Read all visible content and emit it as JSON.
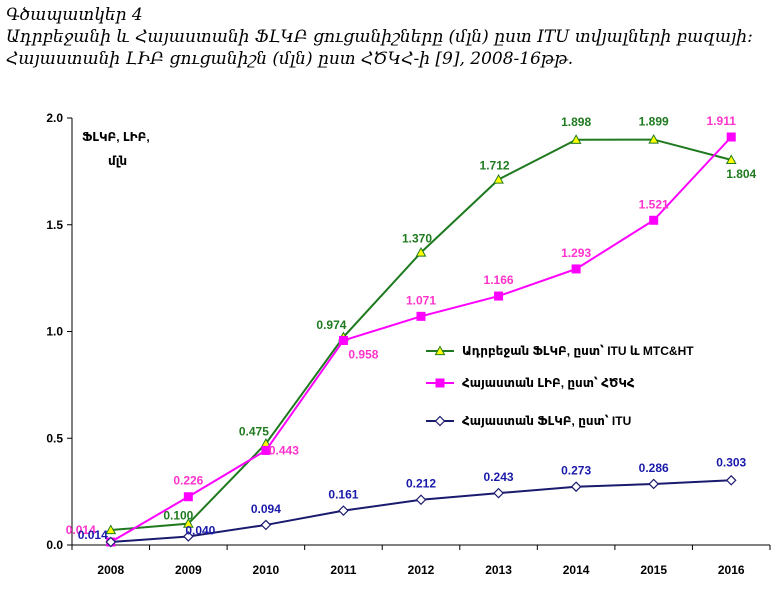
{
  "figure_label": "Գծապատկեր 4",
  "title_line1": "Ադրբեջանի և Հայաստանի ՖԼԿԲ ցուցանիշները (մլն) ըստ ITU տվյալների բազայի:",
  "title_line2": "Հայաստանի ԼԻԲ ցուցանիշն (մլն) ըստ ՀԾԿՀ-ի [9], 2008-16թթ.",
  "chart_data": {
    "type": "line",
    "y_axis_title_line1": "ՖԼԿԲ, ԼԻԲ,",
    "y_axis_title_line2": "մլն",
    "categories": [
      "2008",
      "2009",
      "2010",
      "2011",
      "2012",
      "2013",
      "2014",
      "2015",
      "2016"
    ],
    "ylim": [
      0,
      2.0
    ],
    "yticks": [
      "0.0",
      "0.5",
      "1.0",
      "1.5",
      "2.0"
    ],
    "ytick_values": [
      0,
      0.5,
      1.0,
      1.5,
      2.0
    ],
    "grid": false,
    "legend_position": "right",
    "series": [
      {
        "name": "Ադրբեջան ՖԼԿԲ, ըստ՝ ITU և MTC&HT",
        "color": "#1f7a1f",
        "marker": "triangle",
        "marker_fill": "#ffff00",
        "values": [
          0.07,
          0.1,
          0.475,
          0.974,
          1.37,
          1.712,
          1.898,
          1.899,
          1.804
        ],
        "labels": [
          "",
          "0.100",
          "0.475",
          "0.974",
          "1.370",
          "1.712",
          "1.898",
          "1.899",
          "1.804"
        ],
        "label_color": "#1f7a1f"
      },
      {
        "name": "Հայաստան ԼԻԲ, ըստ՝ ՀԾԿՀ",
        "color": "#ff00ff",
        "marker": "square",
        "marker_fill": "#ff00ff",
        "values": [
          0.014,
          0.226,
          0.443,
          0.958,
          1.071,
          1.166,
          1.293,
          1.521,
          1.911
        ],
        "labels": [
          "0.014",
          "0.226",
          "0.443",
          "0.958",
          "1.071",
          "1.166",
          "1.293",
          "1.521",
          "1.911"
        ],
        "label_color": "#ff33cc"
      },
      {
        "name": "Հայաստան ՖԼԿԲ, ըստ՝ ITU",
        "color": "#1a1a6e",
        "marker": "diamond",
        "marker_fill": "#ffffff",
        "values": [
          0.014,
          0.04,
          0.094,
          0.161,
          0.212,
          0.243,
          0.273,
          0.286,
          0.303
        ],
        "labels": [
          "0.014",
          "0.040",
          "0.094",
          "0.161",
          "0.212",
          "0.243",
          "0.273",
          "0.286",
          "0.303"
        ],
        "label_color": "#1a1aaa"
      }
    ]
  }
}
